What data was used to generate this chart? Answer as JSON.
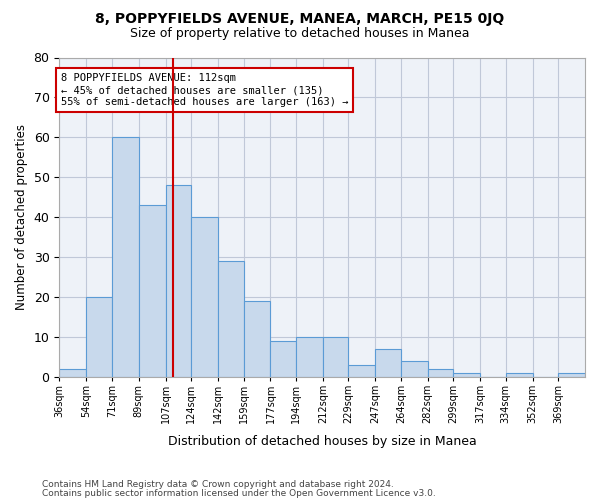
{
  "title": "8, POPPYFIELDS AVENUE, MANEA, MARCH, PE15 0JQ",
  "subtitle": "Size of property relative to detached houses in Manea",
  "xlabel": "Distribution of detached houses by size in Manea",
  "ylabel": "Number of detached properties",
  "bar_edges": [
    36,
    54,
    71,
    89,
    107,
    124,
    142,
    159,
    177,
    194,
    212,
    229,
    247,
    264,
    282,
    299,
    317,
    334,
    352,
    369,
    387
  ],
  "bar_heights": [
    2,
    20,
    60,
    43,
    48,
    40,
    29,
    19,
    9,
    10,
    10,
    3,
    7,
    4,
    2,
    1,
    0,
    1,
    0,
    1
  ],
  "bar_color": "#c8d9ec",
  "bar_edge_color": "#5b9bd5",
  "property_line_x": 112,
  "property_line_color": "#cc0000",
  "annotation_text": "8 POPPYFIELDS AVENUE: 112sqm\n← 45% of detached houses are smaller (135)\n55% of semi-detached houses are larger (163) →",
  "annotation_box_color": "#cc0000",
  "annotation_text_color": "#000000",
  "ylim": [
    0,
    80
  ],
  "yticks": [
    0,
    10,
    20,
    30,
    40,
    50,
    60,
    70,
    80
  ],
  "grid_color": "#c0c8d8",
  "footer_line1": "Contains HM Land Registry data © Crown copyright and database right 2024.",
  "footer_line2": "Contains public sector information licensed under the Open Government Licence v3.0.",
  "bg_color": "#ffffff",
  "plot_bg_color": "#eef2f8"
}
